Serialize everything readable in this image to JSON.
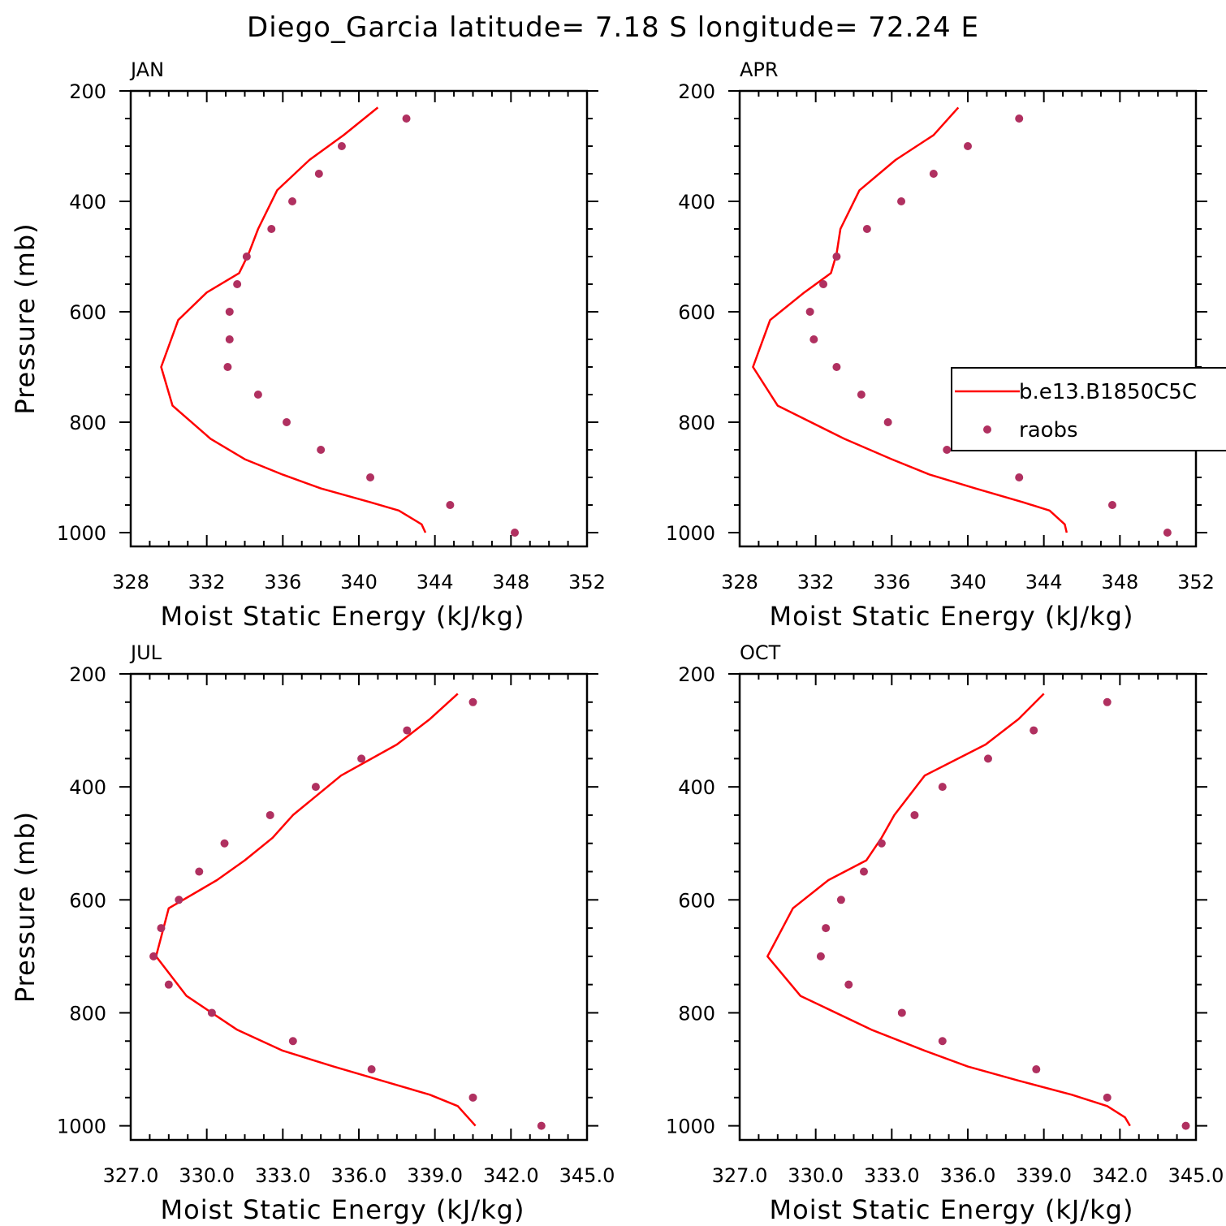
{
  "figure_title": "Diego_Garcia  latitude= 7.18 S longitude= 72.24 E",
  "colors": {
    "model": "#ff0000",
    "obs": "#b03060",
    "axis": "#000000"
  },
  "legend": {
    "model_label": "b.e13.B1850C5C",
    "obs_label": "raobs"
  },
  "chart_data": [
    {
      "type": "line",
      "title": "JAN",
      "xlabel": "Moist Static Energy (kJ/kg)",
      "ylabel": "Pressure (mb)",
      "xlim": [
        328,
        352
      ],
      "ylim": [
        1025,
        200
      ],
      "xticks": [
        "328",
        "332",
        "336",
        "340",
        "344",
        "348",
        "352"
      ],
      "yticks": [
        "200",
        "400",
        "600",
        "800",
        "1000"
      ],
      "series": [
        {
          "name": "b.e13.B1850C5C",
          "kind": "line",
          "x": [
            343.5,
            343.3,
            342.1,
            340.6,
            338.0,
            336.0,
            334.0,
            332.2,
            330.2,
            329.6,
            330.5,
            332.0,
            333.7,
            334.2,
            334.7,
            335.7,
            337.4,
            339.2,
            341.0
          ],
          "y": [
            1000,
            985,
            960,
            945,
            920,
            895,
            867,
            830,
            770,
            700,
            615,
            565,
            530,
            495,
            450,
            380,
            325,
            280,
            230
          ]
        },
        {
          "name": "raobs",
          "kind": "scatter",
          "x": [
            348.2,
            344.8,
            340.6,
            338.0,
            336.2,
            334.7,
            333.1,
            333.2,
            333.2,
            333.6,
            334.1,
            335.4,
            336.5,
            337.9,
            339.1,
            342.5
          ],
          "y": [
            1000,
            950,
            900,
            850,
            800,
            750,
            700,
            650,
            600,
            550,
            500,
            450,
            400,
            350,
            300,
            250
          ]
        }
      ]
    },
    {
      "type": "line",
      "title": "APR",
      "xlabel": "Moist Static Energy (kJ/kg)",
      "ylabel": "",
      "xlim": [
        328,
        352
      ],
      "ylim": [
        1025,
        200
      ],
      "xticks": [
        "328",
        "332",
        "336",
        "340",
        "344",
        "348",
        "352"
      ],
      "yticks": [
        "200",
        "400",
        "600",
        "800",
        "1000"
      ],
      "series": [
        {
          "name": "b.e13.B1850C5C",
          "kind": "line",
          "x": [
            345.2,
            345.1,
            344.3,
            342.9,
            340.4,
            338.0,
            336.0,
            333.5,
            330.0,
            328.7,
            329.6,
            331.4,
            332.8,
            333.1,
            333.3,
            334.3,
            336.2,
            338.2,
            339.5
          ],
          "y": [
            1000,
            985,
            960,
            945,
            920,
            895,
            867,
            830,
            770,
            700,
            615,
            565,
            530,
            495,
            450,
            380,
            325,
            280,
            230
          ]
        },
        {
          "name": "raobs",
          "kind": "scatter",
          "x": [
            350.5,
            347.6,
            342.7,
            338.9,
            335.8,
            334.4,
            333.1,
            331.9,
            331.7,
            332.4,
            333.1,
            334.7,
            336.5,
            338.2,
            340.0,
            342.7
          ],
          "y": [
            1000,
            950,
            900,
            850,
            800,
            750,
            700,
            650,
            600,
            550,
            500,
            450,
            400,
            350,
            300,
            250
          ]
        }
      ]
    },
    {
      "type": "line",
      "title": "JUL",
      "xlabel": "Moist Static Energy (kJ/kg)",
      "ylabel": "Pressure (mb)",
      "xlim": [
        327,
        345
      ],
      "ylim": [
        1025,
        200
      ],
      "xticks": [
        "327.0",
        "330.0",
        "333.0",
        "336.0",
        "339.0",
        "342.0",
        "345.0"
      ],
      "yticks": [
        "200",
        "400",
        "600",
        "800",
        "1000"
      ],
      "series": [
        {
          "name": "b.e13.B1850C5C",
          "kind": "line",
          "x": [
            340.6,
            340.3,
            339.9,
            338.8,
            336.9,
            335.0,
            333.0,
            331.2,
            329.2,
            328.0,
            328.5,
            330.4,
            331.5,
            332.6,
            333.4,
            335.3,
            337.5,
            338.8,
            339.9
          ],
          "y": [
            1000,
            985,
            965,
            945,
            920,
            895,
            867,
            830,
            770,
            700,
            615,
            565,
            530,
            490,
            450,
            380,
            325,
            280,
            235
          ]
        },
        {
          "name": "raobs",
          "kind": "scatter",
          "x": [
            343.2,
            340.5,
            336.5,
            333.4,
            330.2,
            328.5,
            327.9,
            328.2,
            328.9,
            329.7,
            330.7,
            332.5,
            334.3,
            336.1,
            337.9,
            340.5
          ],
          "y": [
            1000,
            950,
            900,
            850,
            800,
            750,
            700,
            650,
            600,
            550,
            500,
            450,
            400,
            350,
            300,
            250
          ]
        }
      ]
    },
    {
      "type": "line",
      "title": "OCT",
      "xlabel": "Moist Static Energy (kJ/kg)",
      "ylabel": "",
      "xlim": [
        327,
        345
      ],
      "ylim": [
        1025,
        200
      ],
      "xticks": [
        "327.0",
        "330.0",
        "333.0",
        "336.0",
        "339.0",
        "342.0",
        "345.0"
      ],
      "yticks": [
        "200",
        "400",
        "600",
        "800",
        "1000"
      ],
      "series": [
        {
          "name": "b.e13.B1850C5C",
          "kind": "line",
          "x": [
            342.4,
            342.2,
            341.5,
            340.1,
            338.0,
            336.0,
            334.3,
            332.2,
            329.4,
            328.1,
            329.1,
            330.5,
            332.0,
            332.6,
            333.1,
            334.3,
            336.7,
            338.0,
            339.0
          ],
          "y": [
            1000,
            985,
            965,
            945,
            920,
            895,
            867,
            830,
            770,
            700,
            615,
            565,
            530,
            490,
            450,
            380,
            325,
            280,
            235
          ]
        },
        {
          "name": "raobs",
          "kind": "scatter",
          "x": [
            344.6,
            341.5,
            338.7,
            335.0,
            333.4,
            331.3,
            330.2,
            330.4,
            331.0,
            331.9,
            332.6,
            333.9,
            335.0,
            336.8,
            338.6,
            341.5
          ],
          "y": [
            1000,
            950,
            900,
            850,
            800,
            750,
            700,
            650,
            600,
            550,
            500,
            450,
            400,
            350,
            300,
            250
          ]
        }
      ]
    }
  ]
}
